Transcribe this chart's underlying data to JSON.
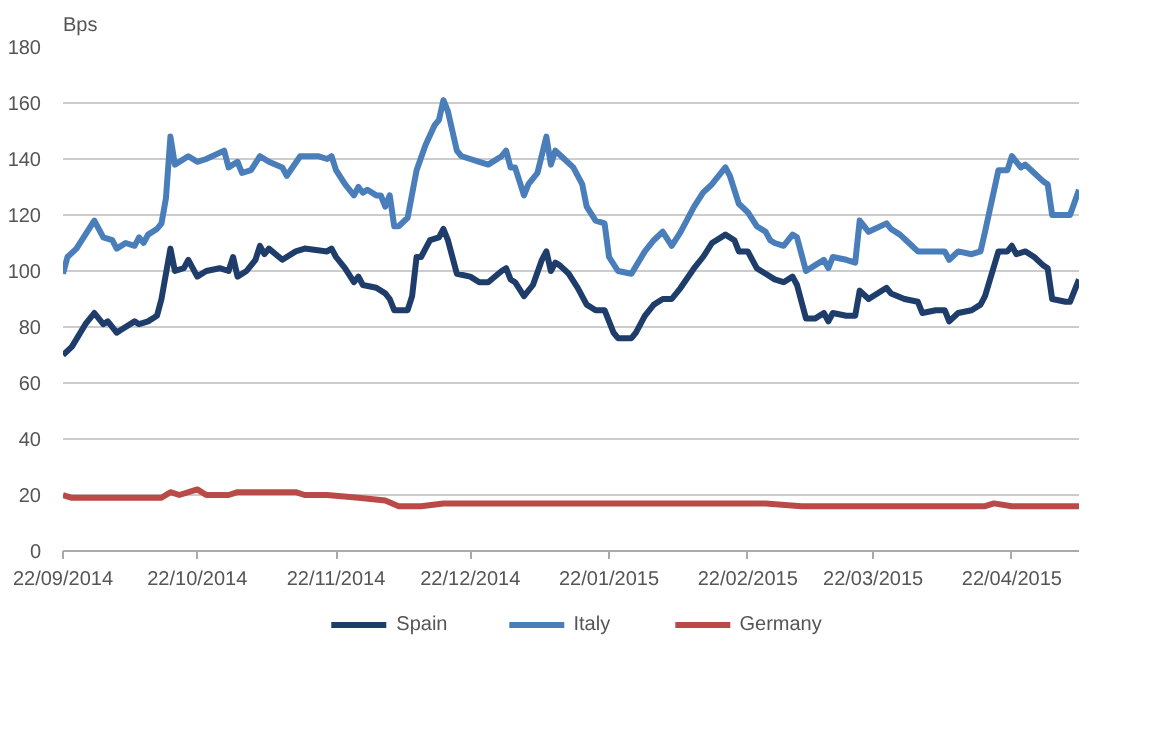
{
  "chart_data": {
    "type": "line",
    "ylabel": "Bps",
    "ylim": [
      0,
      180
    ],
    "yticks": [
      0,
      20,
      40,
      60,
      80,
      100,
      120,
      140,
      160,
      180
    ],
    "xlim": [
      "2014-09-22",
      "2015-05-07"
    ],
    "xticks": [
      {
        "value": "2014-09-22",
        "label": "22/09/2014"
      },
      {
        "value": "2014-10-22",
        "label": "22/10/2014"
      },
      {
        "value": "2014-11-22",
        "label": "22/11/2014"
      },
      {
        "value": "2014-12-22",
        "label": "22/12/2014"
      },
      {
        "value": "2015-01-22",
        "label": "22/01/2015"
      },
      {
        "value": "2015-02-22",
        "label": "22/02/2015"
      },
      {
        "value": "2015-03-22",
        "label": "22/03/2015"
      },
      {
        "value": "2015-04-22",
        "label": "22/04/2015"
      }
    ],
    "grid": "y",
    "legend": "bottom",
    "marker": "none",
    "line_style": "solid",
    "series": [
      {
        "name": "Spain",
        "color": "#1f3d6b",
        "x": [
          "2014-09-22",
          "2014-09-24",
          "2014-09-27",
          "2014-09-29",
          "2014-10-01",
          "2014-10-02",
          "2014-10-04",
          "2014-10-05",
          "2014-10-08",
          "2014-10-09",
          "2014-10-11",
          "2014-10-13",
          "2014-10-14",
          "2014-10-15",
          "2014-10-16",
          "2014-10-17",
          "2014-10-19",
          "2014-10-20",
          "2014-10-22",
          "2014-10-24",
          "2014-10-27",
          "2014-10-29",
          "2014-10-30",
          "2014-10-31",
          "2014-11-02",
          "2014-11-04",
          "2014-11-05",
          "2014-11-06",
          "2014-11-07",
          "2014-11-10",
          "2014-11-13",
          "2014-11-15",
          "2014-11-20",
          "2014-11-21",
          "2014-11-22",
          "2014-11-24",
          "2014-11-26",
          "2014-11-27",
          "2014-11-28",
          "2014-12-01",
          "2014-12-03",
          "2014-12-04",
          "2014-12-05",
          "2014-12-08",
          "2014-12-09",
          "2014-12-10",
          "2014-12-11",
          "2014-12-13",
          "2014-12-15",
          "2014-12-16",
          "2014-12-17",
          "2014-12-19",
          "2014-12-22",
          "2014-12-24",
          "2014-12-26",
          "2014-12-29",
          "2014-12-30",
          "2014-12-31",
          "2015-01-01",
          "2015-01-03",
          "2015-01-05",
          "2015-01-07",
          "2015-01-08",
          "2015-01-09",
          "2015-01-10",
          "2015-01-11",
          "2015-01-13",
          "2015-01-15",
          "2015-01-17",
          "2015-01-19",
          "2015-01-21",
          "2015-01-23",
          "2015-01-24",
          "2015-01-27",
          "2015-01-28",
          "2015-01-30",
          "2015-02-01",
          "2015-02-03",
          "2015-02-05",
          "2015-02-07",
          "2015-02-10",
          "2015-02-12",
          "2015-02-14",
          "2015-02-17",
          "2015-02-19",
          "2015-02-20",
          "2015-02-22",
          "2015-02-24",
          "2015-02-26",
          "2015-02-28",
          "2015-03-02",
          "2015-03-04",
          "2015-03-05",
          "2015-03-07",
          "2015-03-09",
          "2015-03-11",
          "2015-03-12",
          "2015-03-13",
          "2015-03-16",
          "2015-03-18",
          "2015-03-19",
          "2015-03-21",
          "2015-03-25",
          "2015-03-26",
          "2015-03-29",
          "2015-04-01",
          "2015-04-02",
          "2015-04-05",
          "2015-04-07",
          "2015-04-08",
          "2015-04-10",
          "2015-04-13",
          "2015-04-15",
          "2015-04-16",
          "2015-04-19",
          "2015-04-21",
          "2015-04-22",
          "2015-04-23",
          "2015-04-25",
          "2015-04-27",
          "2015-04-29",
          "2015-04-30",
          "2015-05-01",
          "2015-05-04",
          "2015-05-05",
          "2015-05-07"
        ],
        "values": [
          70,
          73,
          81,
          85,
          81,
          82,
          78,
          79,
          82,
          81,
          82,
          84,
          90,
          99,
          108,
          100,
          101,
          104,
          98,
          100,
          101,
          100,
          105,
          98,
          100,
          104,
          109,
          106,
          108,
          104,
          107,
          108,
          107,
          108,
          105,
          101,
          96,
          98,
          95,
          94,
          92,
          90,
          86,
          86,
          91,
          105,
          105,
          111,
          112,
          115,
          111,
          99,
          98,
          96,
          96,
          100,
          101,
          97,
          96,
          91,
          95,
          104,
          107,
          100,
          103,
          102,
          99,
          94,
          88,
          86,
          86,
          78,
          76,
          76,
          78,
          84,
          88,
          90,
          90,
          94,
          101,
          105,
          110,
          113,
          111,
          107,
          107,
          101,
          99,
          97,
          96,
          98,
          95,
          83,
          83,
          85,
          82,
          85,
          84,
          84,
          93,
          90,
          94,
          92,
          90,
          89,
          85,
          86,
          86,
          82,
          85,
          86,
          88,
          91,
          107,
          107,
          109,
          106,
          107,
          105,
          102,
          101,
          90,
          89,
          89,
          97
        ]
      },
      {
        "name": "Italy",
        "color": "#4a7ebb",
        "x": [
          "2014-09-22",
          "2014-09-23",
          "2014-09-25",
          "2014-09-27",
          "2014-09-29",
          "2014-10-01",
          "2014-10-03",
          "2014-10-04",
          "2014-10-06",
          "2014-10-08",
          "2014-10-09",
          "2014-10-10",
          "2014-10-11",
          "2014-10-13",
          "2014-10-14",
          "2014-10-15",
          "2014-10-16",
          "2014-10-17",
          "2014-10-20",
          "2014-10-22",
          "2014-10-24",
          "2014-10-28",
          "2014-10-29",
          "2014-10-31",
          "2014-11-01",
          "2014-11-03",
          "2014-11-05",
          "2014-11-07",
          "2014-11-10",
          "2014-11-11",
          "2014-11-14",
          "2014-11-18",
          "2014-11-20",
          "2014-11-21",
          "2014-11-22",
          "2014-11-24",
          "2014-11-26",
          "2014-11-27",
          "2014-11-28",
          "2014-11-29",
          "2014-12-01",
          "2014-12-02",
          "2014-12-03",
          "2014-12-04",
          "2014-12-05",
          "2014-12-06",
          "2014-12-08",
          "2014-12-10",
          "2014-12-12",
          "2014-12-14",
          "2014-12-15",
          "2014-12-16",
          "2014-12-17",
          "2014-12-19",
          "2014-12-20",
          "2014-12-22",
          "2014-12-24",
          "2014-12-26",
          "2014-12-29",
          "2014-12-30",
          "2014-12-31",
          "2015-01-01",
          "2015-01-03",
          "2015-01-04",
          "2015-01-06",
          "2015-01-08",
          "2015-01-09",
          "2015-01-10",
          "2015-01-12",
          "2015-01-14",
          "2015-01-16",
          "2015-01-17",
          "2015-01-19",
          "2015-01-21",
          "2015-01-22",
          "2015-01-24",
          "2015-01-27",
          "2015-01-30",
          "2015-02-01",
          "2015-02-03",
          "2015-02-05",
          "2015-02-07",
          "2015-02-10",
          "2015-02-12",
          "2015-02-14",
          "2015-02-17",
          "2015-02-18",
          "2015-02-20",
          "2015-02-22",
          "2015-02-24",
          "2015-02-26",
          "2015-02-27",
          "2015-02-28",
          "2015-03-02",
          "2015-03-04",
          "2015-03-05",
          "2015-03-07",
          "2015-03-09",
          "2015-03-11",
          "2015-03-12",
          "2015-03-13",
          "2015-03-16",
          "2015-03-18",
          "2015-03-19",
          "2015-03-21",
          "2015-03-25",
          "2015-03-26",
          "2015-03-28",
          "2015-03-30",
          "2015-04-01",
          "2015-04-02",
          "2015-04-07",
          "2015-04-08",
          "2015-04-10",
          "2015-04-13",
          "2015-04-15",
          "2015-04-16",
          "2015-04-19",
          "2015-04-21",
          "2015-04-22",
          "2015-04-24",
          "2015-04-25",
          "2015-04-27",
          "2015-04-29",
          "2015-04-30",
          "2015-05-01",
          "2015-05-04",
          "2015-05-05",
          "2015-05-07"
        ],
        "values": [
          99,
          105,
          108,
          113,
          118,
          112,
          111,
          108,
          110,
          109,
          112,
          110,
          113,
          115,
          117,
          126,
          148,
          138,
          141,
          139,
          140,
          143,
          137,
          139,
          135,
          136,
          141,
          139,
          137,
          134,
          141,
          141,
          140,
          141,
          136,
          131,
          127,
          130,
          128,
          129,
          127,
          127,
          123,
          127,
          116,
          116,
          119,
          136,
          145,
          152,
          154,
          161,
          157,
          143,
          141,
          140,
          139,
          138,
          141,
          143,
          137,
          137,
          127,
          131,
          135,
          148,
          138,
          143,
          140,
          137,
          131,
          123,
          118,
          117,
          105,
          100,
          99,
          107,
          111,
          114,
          109,
          114,
          123,
          128,
          131,
          137,
          134,
          124,
          121,
          116,
          114,
          111,
          110,
          109,
          113,
          112,
          100,
          102,
          104,
          101,
          105,
          104,
          103,
          118,
          114,
          117,
          115,
          113,
          110,
          107,
          107,
          107,
          104,
          107,
          106,
          107,
          114,
          136,
          136,
          141,
          137,
          138,
          135,
          132,
          131,
          120,
          120,
          120,
          129
        ]
      },
      {
        "name": "Germany",
        "color": "#b94a48",
        "x": [
          "2014-09-22",
          "2014-09-24",
          "2014-10-14",
          "2014-10-16",
          "2014-10-18",
          "2014-10-22",
          "2014-10-24",
          "2014-10-29",
          "2014-10-31",
          "2014-11-05",
          "2014-11-13",
          "2014-11-15",
          "2014-11-20",
          "2014-11-27",
          "2014-12-03",
          "2014-12-06",
          "2014-12-11",
          "2014-12-16",
          "2015-02-26",
          "2015-03-06",
          "2015-03-27",
          "2015-04-16",
          "2015-04-18",
          "2015-04-22",
          "2015-05-07"
        ],
        "values": [
          20,
          19,
          19,
          21,
          20,
          22,
          20,
          20,
          21,
          21,
          21,
          20,
          20,
          19,
          18,
          16,
          16,
          17,
          17,
          16,
          16,
          16,
          17,
          16,
          16
        ]
      }
    ]
  }
}
